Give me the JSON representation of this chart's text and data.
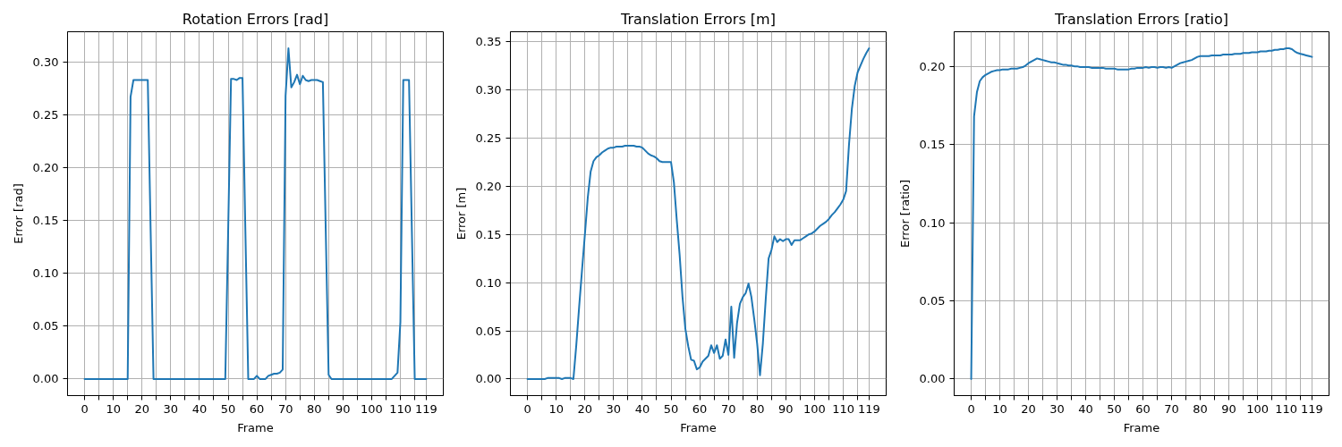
{
  "chart_data": [
    {
      "type": "line",
      "title": "Rotation Errors [rad]",
      "xlabel": "Frame",
      "ylabel": "Error [rad]",
      "grid": true,
      "x": [
        0,
        1,
        2,
        3,
        4,
        5,
        6,
        7,
        8,
        9,
        10,
        11,
        12,
        13,
        14,
        15,
        16,
        17,
        18,
        19,
        20,
        21,
        22,
        23,
        24,
        25,
        26,
        27,
        28,
        29,
        30,
        31,
        32,
        33,
        34,
        35,
        36,
        37,
        38,
        39,
        40,
        41,
        42,
        43,
        44,
        45,
        46,
        47,
        48,
        49,
        50,
        51,
        52,
        53,
        54,
        55,
        56,
        57,
        58,
        59,
        60,
        61,
        62,
        63,
        64,
        65,
        66,
        67,
        68,
        69,
        70,
        71,
        72,
        73,
        74,
        75,
        76,
        77,
        78,
        79,
        80,
        81,
        82,
        83,
        84,
        85,
        86,
        87,
        88,
        89,
        90,
        91,
        92,
        93,
        94,
        95,
        96,
        97,
        98,
        99,
        100,
        101,
        102,
        103,
        104,
        105,
        106,
        107,
        108,
        109,
        110,
        111,
        112,
        113,
        114,
        115,
        116,
        117,
        118,
        119
      ],
      "xlim": [
        -5.95,
        124.95
      ],
      "xticks": [
        0,
        {
          "value": 5,
          "label": null
        },
        10,
        {
          "value": 15,
          "label": null
        },
        20,
        {
          "value": 25,
          "label": null
        },
        30,
        {
          "value": 35,
          "label": null
        },
        40,
        {
          "value": 45,
          "label": null
        },
        50,
        {
          "value": 55,
          "label": null
        },
        60,
        {
          "value": 65,
          "label": null
        },
        70,
        {
          "value": 75,
          "label": null
        },
        80,
        {
          "value": 85,
          "label": null
        },
        90,
        {
          "value": 95,
          "label": null
        },
        100,
        {
          "value": 105,
          "label": null
        },
        110,
        {
          "value": 115,
          "label": null
        },
        119
      ],
      "ylim": [
        -0.0157,
        0.3287
      ],
      "yticks": [
        {
          "value": 0,
          "label": "0.00"
        },
        {
          "value": 0.05,
          "label": "0.05"
        },
        {
          "value": 0.1,
          "label": "0.10"
        },
        {
          "value": 0.15,
          "label": "0.15"
        },
        {
          "value": 0.2,
          "label": "0.20"
        },
        {
          "value": 0.25,
          "label": "0.25"
        },
        {
          "value": 0.3,
          "label": "0.30"
        }
      ],
      "series": [
        {
          "color": "#1f77b4",
          "values": [
            0,
            0,
            0,
            0,
            0,
            0,
            0,
            0,
            0,
            0,
            0,
            0,
            0,
            0,
            0,
            0,
            0.267,
            0.283,
            0.283,
            0.283,
            0.283,
            0.283,
            0.283,
            0.14,
            0,
            0,
            0,
            0,
            0,
            0,
            0,
            0,
            0,
            0,
            0,
            0,
            0,
            0,
            0,
            0,
            0,
            0,
            0,
            0,
            0,
            0,
            0,
            0,
            0,
            0,
            0.14,
            0.284,
            0.284,
            0.283,
            0.285,
            0.285,
            0.14,
            0,
            0,
            0,
            0.003,
            0,
            0,
            0,
            0.003,
            0.004,
            0.005,
            0.005,
            0.006,
            0.009,
            0.268,
            0.313,
            0.276,
            0.281,
            0.288,
            0.279,
            0.287,
            0.283,
            0.282,
            0.283,
            0.283,
            0.283,
            0.282,
            0.281,
            0.14,
            0.004,
            0,
            0,
            0,
            0,
            0,
            0,
            0,
            0,
            0,
            0,
            0,
            0,
            0,
            0,
            0,
            0,
            0,
            0,
            0,
            0,
            0,
            0,
            0.003,
            0.006,
            0.054,
            0.283,
            0.283,
            0.283,
            0.14,
            0,
            0,
            0,
            0,
            0
          ]
        }
      ]
    },
    {
      "type": "line",
      "title": "Translation Errors [m]",
      "xlabel": "Frame",
      "ylabel": "Error [m]",
      "grid": true,
      "x": [
        0,
        1,
        2,
        3,
        4,
        5,
        6,
        7,
        8,
        9,
        10,
        11,
        12,
        13,
        14,
        15,
        16,
        17,
        18,
        19,
        20,
        21,
        22,
        23,
        24,
        25,
        26,
        27,
        28,
        29,
        30,
        31,
        32,
        33,
        34,
        35,
        36,
        37,
        38,
        39,
        40,
        41,
        42,
        43,
        44,
        45,
        46,
        47,
        48,
        49,
        50,
        51,
        52,
        53,
        54,
        55,
        56,
        57,
        58,
        59,
        60,
        61,
        62,
        63,
        64,
        65,
        66,
        67,
        68,
        69,
        70,
        71,
        72,
        73,
        74,
        75,
        76,
        77,
        78,
        79,
        80,
        81,
        82,
        83,
        84,
        85,
        86,
        87,
        88,
        89,
        90,
        91,
        92,
        93,
        94,
        95,
        96,
        97,
        98,
        99,
        100,
        101,
        102,
        103,
        104,
        105,
        106,
        107,
        108,
        109,
        110,
        111,
        112,
        113,
        114,
        115,
        116,
        117,
        118,
        119
      ],
      "xlim": [
        -5.95,
        124.95
      ],
      "xticks": [
        0,
        {
          "value": 5,
          "label": null
        },
        10,
        {
          "value": 15,
          "label": null
        },
        20,
        {
          "value": 25,
          "label": null
        },
        30,
        {
          "value": 35,
          "label": null
        },
        40,
        {
          "value": 45,
          "label": null
        },
        50,
        {
          "value": 55,
          "label": null
        },
        60,
        {
          "value": 65,
          "label": null
        },
        70,
        {
          "value": 75,
          "label": null
        },
        80,
        {
          "value": 85,
          "label": null
        },
        90,
        {
          "value": 95,
          "label": null
        },
        100,
        {
          "value": 105,
          "label": null
        },
        110,
        {
          "value": 115,
          "label": null
        },
        119
      ],
      "ylim": [
        -0.0172,
        0.3602
      ],
      "yticks": [
        {
          "value": 0,
          "label": "0.00"
        },
        {
          "value": 0.05,
          "label": "0.05"
        },
        {
          "value": 0.1,
          "label": "0.10"
        },
        {
          "value": 0.15,
          "label": "0.15"
        },
        {
          "value": 0.2,
          "label": "0.20"
        },
        {
          "value": 0.25,
          "label": "0.25"
        },
        {
          "value": 0.3,
          "label": "0.30"
        },
        {
          "value": 0.35,
          "label": "0.35"
        }
      ],
      "series": [
        {
          "color": "#1f77b4",
          "values": [
            0,
            0,
            0,
            0,
            0,
            0,
            0,
            0.001,
            0.001,
            0.001,
            0.001,
            0.001,
            0,
            0.001,
            0.001,
            0.001,
            0,
            0.035,
            0.075,
            0.113,
            0.15,
            0.188,
            0.215,
            0.226,
            0.23,
            0.232,
            0.235,
            0.237,
            0.239,
            0.24,
            0.24,
            0.241,
            0.241,
            0.241,
            0.242,
            0.242,
            0.242,
            0.242,
            0.241,
            0.241,
            0.24,
            0.237,
            0.234,
            0.232,
            0.231,
            0.229,
            0.226,
            0.225,
            0.225,
            0.225,
            0.225,
            0.204,
            0.165,
            0.129,
            0.085,
            0.052,
            0.034,
            0.02,
            0.019,
            0.01,
            0.012,
            0.018,
            0.021,
            0.024,
            0.035,
            0.027,
            0.035,
            0.021,
            0.024,
            0.041,
            0.025,
            0.075,
            0.022,
            0.058,
            0.078,
            0.085,
            0.089,
            0.099,
            0.085,
            0.062,
            0.037,
            0.004,
            0.037,
            0.083,
            0.125,
            0.134,
            0.148,
            0.142,
            0.145,
            0.143,
            0.145,
            0.145,
            0.139,
            0.144,
            0.144,
            0.144,
            0.146,
            0.148,
            0.15,
            0.151,
            0.153,
            0.156,
            0.159,
            0.161,
            0.163,
            0.166,
            0.17,
            0.173,
            0.177,
            0.181,
            0.186,
            0.195,
            0.243,
            0.28,
            0.304,
            0.318,
            0.325,
            0.332,
            0.338,
            0.343
          ]
        }
      ]
    },
    {
      "type": "line",
      "title": "Translation Errors [ratio]",
      "xlabel": "Frame",
      "ylabel": "Error [ratio]",
      "grid": true,
      "x": [
        0,
        1,
        2,
        3,
        4,
        5,
        6,
        7,
        8,
        9,
        10,
        11,
        12,
        13,
        14,
        15,
        16,
        17,
        18,
        19,
        20,
        21,
        22,
        23,
        24,
        25,
        26,
        27,
        28,
        29,
        30,
        31,
        32,
        33,
        34,
        35,
        36,
        37,
        38,
        39,
        40,
        41,
        42,
        43,
        44,
        45,
        46,
        47,
        48,
        49,
        50,
        51,
        52,
        53,
        54,
        55,
        56,
        57,
        58,
        59,
        60,
        61,
        62,
        63,
        64,
        65,
        66,
        67,
        68,
        69,
        70,
        71,
        72,
        73,
        74,
        75,
        76,
        77,
        78,
        79,
        80,
        81,
        82,
        83,
        84,
        85,
        86,
        87,
        88,
        89,
        90,
        91,
        92,
        93,
        94,
        95,
        96,
        97,
        98,
        99,
        100,
        101,
        102,
        103,
        104,
        105,
        106,
        107,
        108,
        109,
        110,
        111,
        112,
        113,
        114,
        115,
        116,
        117,
        118,
        119
      ],
      "xlim": [
        -5.95,
        124.95
      ],
      "xticks": [
        0,
        {
          "value": 5,
          "label": null
        },
        10,
        {
          "value": 15,
          "label": null
        },
        20,
        {
          "value": 25,
          "label": null
        },
        30,
        {
          "value": 35,
          "label": null
        },
        40,
        {
          "value": 45,
          "label": null
        },
        50,
        {
          "value": 55,
          "label": null
        },
        60,
        {
          "value": 65,
          "label": null
        },
        70,
        {
          "value": 75,
          "label": null
        },
        80,
        {
          "value": 85,
          "label": null
        },
        90,
        {
          "value": 95,
          "label": null
        },
        100,
        {
          "value": 105,
          "label": null
        },
        110,
        {
          "value": 115,
          "label": null
        },
        119
      ],
      "ylim": [
        -0.0106,
        0.2221
      ],
      "yticks": [
        {
          "value": 0,
          "label": "0.00"
        },
        {
          "value": 0.05,
          "label": "0.05"
        },
        {
          "value": 0.1,
          "label": "0.10"
        },
        {
          "value": 0.15,
          "label": "0.15"
        },
        {
          "value": 0.2,
          "label": "0.20"
        }
      ],
      "series": [
        {
          "color": "#1f77b4",
          "values": [
            0,
            0.168,
            0.1835,
            0.1905,
            0.193,
            0.1945,
            0.1955,
            0.1965,
            0.197,
            0.1975,
            0.1975,
            0.198,
            0.198,
            0.198,
            0.1985,
            0.1985,
            0.1985,
            0.199,
            0.1995,
            0.2005,
            0.202,
            0.203,
            0.204,
            0.205,
            0.2045,
            0.204,
            0.2035,
            0.203,
            0.2025,
            0.2025,
            0.202,
            0.2015,
            0.201,
            0.201,
            0.2005,
            0.2005,
            0.2,
            0.2,
            0.1995,
            0.1995,
            0.1995,
            0.1995,
            0.199,
            0.199,
            0.199,
            0.199,
            0.199,
            0.1985,
            0.1985,
            0.1985,
            0.1985,
            0.198,
            0.198,
            0.198,
            0.198,
            0.198,
            0.1985,
            0.1985,
            0.199,
            0.199,
            0.199,
            0.1995,
            0.199,
            0.1995,
            0.1995,
            0.199,
            0.1995,
            0.1995,
            0.199,
            0.1995,
            0.199,
            0.2,
            0.201,
            0.202,
            0.2025,
            0.203,
            0.2035,
            0.204,
            0.205,
            0.206,
            0.2065,
            0.2065,
            0.2065,
            0.2065,
            0.207,
            0.207,
            0.207,
            0.207,
            0.2075,
            0.2075,
            0.2075,
            0.2075,
            0.208,
            0.208,
            0.208,
            0.2085,
            0.2085,
            0.2085,
            0.209,
            0.209,
            0.209,
            0.2095,
            0.2095,
            0.2095,
            0.21,
            0.21,
            0.2105,
            0.2105,
            0.211,
            0.211,
            0.2115,
            0.2115,
            0.211,
            0.2095,
            0.2085,
            0.208,
            0.2075,
            0.207,
            0.2065,
            0.206
          ]
        }
      ]
    }
  ]
}
